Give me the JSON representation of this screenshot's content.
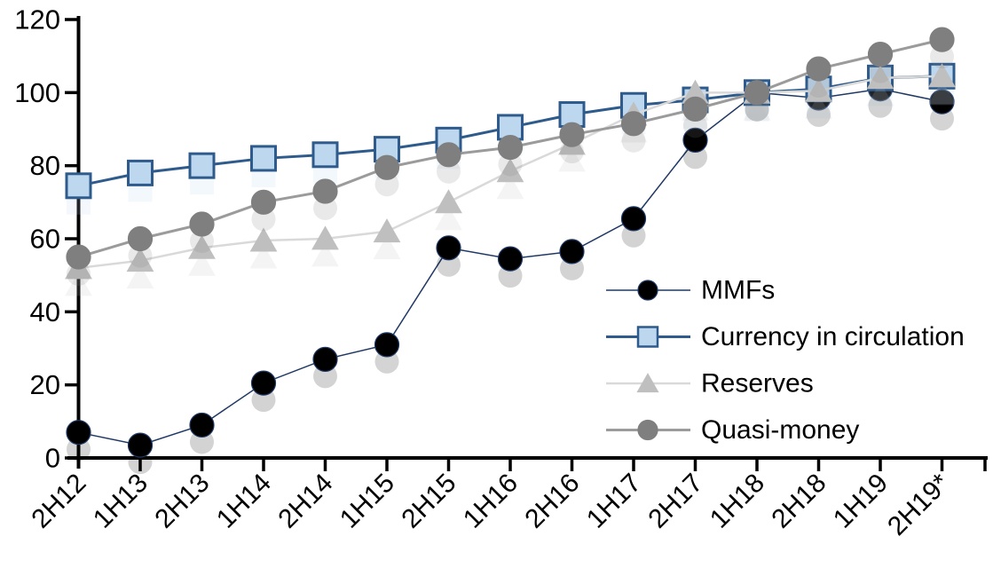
{
  "figure": {
    "background": "#FFFFFF",
    "text_color": "#000000",
    "axis_color": "#000000"
  },
  "chart_data": {
    "type": "line",
    "title": "",
    "xlabel": "",
    "ylabel": "",
    "grid": false,
    "legend_position": "inside-right",
    "ylim": [
      0,
      120
    ],
    "yticks": [
      0,
      20,
      40,
      60,
      80,
      100,
      120
    ],
    "categories": [
      "2H12",
      "1H13",
      "2H13",
      "1H14",
      "2H14",
      "1H15",
      "2H15",
      "1H16",
      "2H16",
      "1H17",
      "2H17",
      "1H18",
      "2H18",
      "1H19",
      "2H19*"
    ],
    "series": [
      {
        "name": "MMFs",
        "marker": "circle",
        "marker_fill": "#000000",
        "marker_stroke": "#1F3864",
        "line_color": "#1F3864",
        "line_width": 1.5,
        "values": [
          7,
          3.5,
          9,
          20.5,
          27,
          31,
          57.5,
          54.5,
          56.5,
          65.5,
          87,
          100,
          98.5,
          101,
          97.5
        ]
      },
      {
        "name": "Currency in circulation",
        "marker": "square",
        "marker_fill": "#BDD7EE",
        "marker_stroke": "#2E5B8C",
        "line_color": "#2E5B8C",
        "line_width": 3,
        "values": [
          74.5,
          78,
          80,
          82,
          83,
          84.5,
          87,
          90.5,
          94,
          96.5,
          98,
          100,
          101,
          104,
          104.5
        ]
      },
      {
        "name": "Reserves",
        "marker": "triangle",
        "marker_fill": "#BFBFBF",
        "marker_stroke": "#BFBFBF",
        "line_color": "#D9D9D9",
        "line_width": 2.5,
        "values": [
          52,
          54,
          57.5,
          59.5,
          60,
          62,
          70,
          78.5,
          86,
          94,
          100,
          100,
          100.5,
          104,
          104.5
        ]
      },
      {
        "name": "Quasi-money",
        "marker": "circle",
        "marker_fill": "#7F7F7F",
        "marker_stroke": "#7F7F7F",
        "line_color": "#9B9B9B",
        "line_width": 3,
        "values": [
          55,
          60,
          64,
          70,
          73,
          79.5,
          83,
          85,
          88.5,
          91.5,
          95.5,
          100,
          106.5,
          110.5,
          114.5
        ]
      }
    ]
  }
}
